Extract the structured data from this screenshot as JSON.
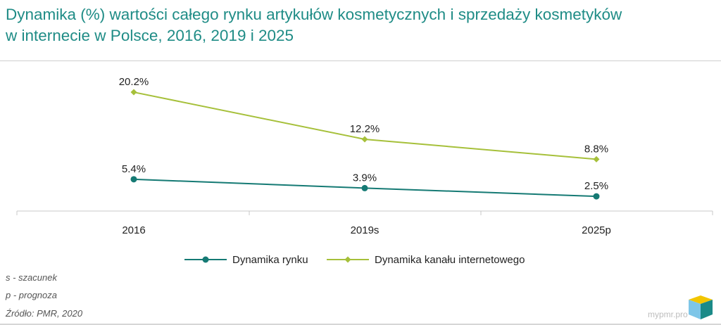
{
  "title_line1": "Dynamika (%) wartości całego rynku artykułów kosmetycznych i sprzedaży kosmetyków",
  "title_line2": "w internecie w Polsce, 2016, 2019 i 2025",
  "notes": [
    "s - szacunek",
    "p - prognoza"
  ],
  "source": "Źródło: PMR, 2020",
  "brand": "mypmr.pro",
  "colors": {
    "title": "#1f8c86",
    "rynek": "#157a74",
    "internet": "#a6c03a"
  },
  "chart_data": {
    "type": "line",
    "categories": [
      "2016",
      "2019s",
      "2025p"
    ],
    "series": [
      {
        "name": "Dynamika rynku",
        "values": [
          5.4,
          3.9,
          2.5
        ],
        "labels": [
          "5.4%",
          "3.9%",
          "2.5%"
        ],
        "color": "#157a74",
        "marker": "circle"
      },
      {
        "name": "Dynamika kanału internetowego",
        "values": [
          20.2,
          12.2,
          8.8
        ],
        "labels": [
          "20.2%",
          "12.2%",
          "8.8%"
        ],
        "color": "#a6c03a",
        "marker": "diamond"
      }
    ],
    "ylim": [
      0,
      22
    ],
    "grid": false,
    "legend": "bottom"
  }
}
